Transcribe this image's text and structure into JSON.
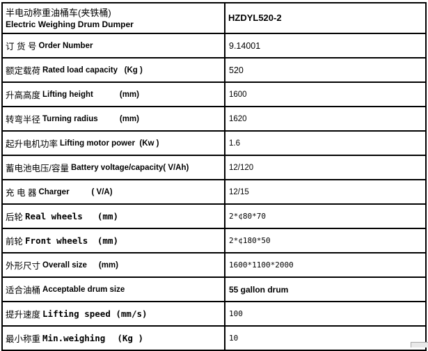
{
  "header": {
    "title_zh": "半电动称重油桶车(夹铁桶)",
    "title_en": "Electric Weighing Drum Dumper",
    "model": "HZDYL520-2"
  },
  "rows": [
    {
      "zh": "订 货 号",
      "en": "Order Number",
      "unit": "",
      "value": "9.14001"
    },
    {
      "zh": "额定载荷",
      "en": "Rated load capacity   (Kg )",
      "unit": "",
      "value": "520"
    },
    {
      "zh": "升高高度",
      "en": "Lifting height",
      "unit": "(mm)",
      "value": "1600"
    },
    {
      "zh": "转弯半径",
      "en": "Turning radius",
      "unit": "(mm)",
      "value": "1620"
    },
    {
      "zh": "起升电机功率",
      "en": "Lifting motor power  (Kw )",
      "unit": "",
      "value": "1.6"
    },
    {
      "zh": "蓄电池电压/容量",
      "en": "Battery voltage/capacity( V/Ah)",
      "unit": "",
      "value": "12/120"
    },
    {
      "zh": "充 电 器",
      "en": "Charger          ( V/A)",
      "unit": "",
      "value": "12/15"
    },
    {
      "zh": "后轮",
      "en": "Real wheels",
      "unit": "(mm)",
      "value": "2*¢80*70"
    },
    {
      "zh": "前轮",
      "en": "Front wheels",
      "unit": "(mm)",
      "value": "2*¢180*50"
    },
    {
      "zh": "外形尺寸",
      "en": "Overall size",
      "unit": "(mm)",
      "value": "1600*1100*2000"
    },
    {
      "zh": "适合油桶",
      "en": "Acceptable drum size",
      "unit": "",
      "value": "55 gallon drum"
    },
    {
      "zh": "提升速度",
      "en": "Lifting speed (mm/s)",
      "unit": "",
      "value": "100"
    },
    {
      "zh": "最小称重",
      "en": "Min.weighing",
      "unit": "(Kg )",
      "value": "10"
    }
  ]
}
